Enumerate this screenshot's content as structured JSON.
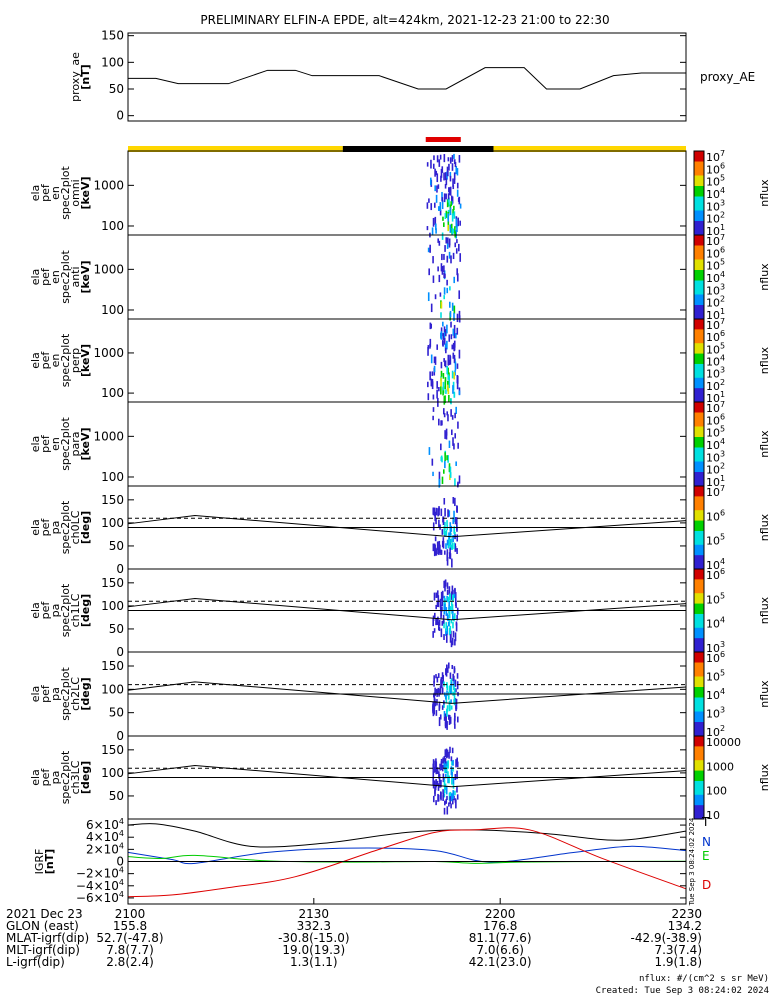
{
  "title": "PRELIMINARY ELFIN-A EPDE, alt=424km, 2021-12-23 21:00 to 22:30",
  "colors": {
    "ae_line": "#000000",
    "day_bar": "#ffd700",
    "night_bar": "#000000",
    "sci_bar": "#e00000",
    "grf_T": "#000000",
    "grf_N": "#0033cc",
    "grf_E": "#00cc00",
    "grf_D": "#dd0000"
  },
  "orbit_bars": {
    "day_night": [
      {
        "start": 0.0,
        "end": 0.385,
        "state": "day"
      },
      {
        "start": 0.385,
        "end": 0.655,
        "state": "night"
      },
      {
        "start": 0.655,
        "end": 1.0,
        "state": "day"
      }
    ],
    "science_zone": {
      "start": 0.53,
      "end": 0.6
    }
  },
  "panels": [
    {
      "id": "proxy_ae",
      "ylabel": [
        "proxy_ae",
        "[nT]"
      ],
      "right_label": "proxy_AE",
      "ticks": [
        "150",
        "100",
        "50",
        "0"
      ]
    },
    {
      "id": "en_omni",
      "ylabel": [
        "ela",
        "pef",
        "en",
        "spec2plot",
        "omni",
        "[keV]"
      ],
      "ticks": [
        "1000",
        "100"
      ],
      "cbar_label": "nflux",
      "cbar_ticks": [
        "10^7",
        "10^6",
        "10^5",
        "10^4",
        "10^3",
        "10^2",
        "10^1"
      ]
    },
    {
      "id": "en_anti",
      "ylabel": [
        "ela",
        "pef",
        "en",
        "spec2plot",
        "anti",
        "[keV]"
      ],
      "ticks": [
        "1000",
        "100"
      ],
      "cbar_label": "nflux",
      "cbar_ticks": [
        "10^7",
        "10^6",
        "10^5",
        "10^4",
        "10^3",
        "10^2",
        "10^1"
      ]
    },
    {
      "id": "en_perp",
      "ylabel": [
        "ela",
        "pef",
        "en",
        "spec2plot",
        "perp",
        "[keV]"
      ],
      "ticks": [
        "1000",
        "100"
      ],
      "cbar_label": "nflux",
      "cbar_ticks": [
        "10^7",
        "10^6",
        "10^5",
        "10^4",
        "10^3",
        "10^2",
        "10^1"
      ]
    },
    {
      "id": "en_para",
      "ylabel": [
        "ela",
        "pef",
        "en",
        "spec2plot",
        "para",
        "[keV]"
      ],
      "ticks": [
        "1000",
        "100"
      ],
      "cbar_label": "nflux",
      "cbar_ticks": [
        "10^7",
        "10^6",
        "10^5",
        "10^4",
        "10^3",
        "10^2",
        "10^1"
      ]
    },
    {
      "id": "pa_ch0",
      "ylabel": [
        "ela",
        "pef",
        "pa",
        "spec2plot",
        "ch0LC",
        "[deg]"
      ],
      "ticks": [
        "150",
        "100",
        "50",
        "0"
      ],
      "cbar_label": "nflux",
      "cbar_ticks": [
        "10^7",
        "10^6",
        "10^5",
        "10^4"
      ]
    },
    {
      "id": "pa_ch1",
      "ylabel": [
        "ela",
        "pef",
        "pa",
        "spec2plot",
        "ch1LC",
        "[deg]"
      ],
      "ticks": [
        "150",
        "100",
        "50",
        "0"
      ],
      "cbar_label": "nflux",
      "cbar_ticks": [
        "10^6",
        "10^5",
        "10^4",
        "10^3"
      ]
    },
    {
      "id": "pa_ch2",
      "ylabel": [
        "ela",
        "pef",
        "pa",
        "spec2plot",
        "ch2LC",
        "[deg]"
      ],
      "ticks": [
        "150",
        "100",
        "50",
        "0"
      ],
      "cbar_label": "nflux",
      "cbar_ticks": [
        "10^6",
        "10^5",
        "10^4",
        "10^3",
        "10^2"
      ]
    },
    {
      "id": "pa_ch3",
      "ylabel": [
        "ela",
        "pef",
        "pa",
        "spec2plot",
        "ch3LC",
        "[deg]"
      ],
      "ticks": [
        "150",
        "100",
        "50"
      ],
      "cbar_label": "nflux",
      "cbar_ticks": [
        "10000",
        "1000",
        "100",
        "10"
      ]
    },
    {
      "id": "igrf",
      "ylabel": [
        "IGRF",
        "[nT]"
      ],
      "ticks": [
        "6×10^4",
        "4×10^4",
        "2×10^4",
        "0",
        "−2×10^4",
        "−4×10^4",
        "−6×10^4"
      ],
      "legend": [
        "T",
        "N",
        "E",
        "D"
      ],
      "side_stamp": "Tue Sep  3 08:24:02 2024"
    }
  ],
  "chart_data": [
    {
      "type": "line",
      "title": "",
      "ylabel": "proxy_ae [nT]",
      "ylim": [
        -10,
        155
      ],
      "series": [
        {
          "name": "proxy_AE",
          "x": [
            0,
            0.05,
            0.09,
            0.18,
            0.25,
            0.3,
            0.33,
            0.45,
            0.52,
            0.57,
            0.64,
            0.71,
            0.75,
            0.81,
            0.87,
            0.92,
            1.0
          ],
          "values": [
            70,
            70,
            60,
            60,
            85,
            85,
            75,
            75,
            50,
            50,
            90,
            90,
            50,
            50,
            75,
            80,
            80
          ]
        }
      ]
    },
    {
      "type": "heatmap",
      "title": "",
      "ylabel": "ela pef en spec2plot omni [keV]",
      "ylim": [
        60,
        7000
      ],
      "yscale": "log",
      "clim": [
        10,
        10000000
      ],
      "clabel": "nflux",
      "x_range": [
        0.535,
        0.595
      ]
    },
    {
      "type": "heatmap",
      "title": "",
      "ylabel": "ela pef en spec2plot anti [keV]",
      "ylim": [
        60,
        7000
      ],
      "yscale": "log",
      "clim": [
        10,
        10000000
      ],
      "clabel": "nflux",
      "x_range": [
        0.535,
        0.595
      ]
    },
    {
      "type": "heatmap",
      "title": "",
      "ylabel": "ela pef en spec2plot perp [keV]",
      "ylim": [
        60,
        7000
      ],
      "yscale": "log",
      "clim": [
        10,
        10000000
      ],
      "clabel": "nflux",
      "x_range": [
        0.535,
        0.595
      ]
    },
    {
      "type": "heatmap",
      "title": "",
      "ylabel": "ela pef en spec2plot para [keV]",
      "ylim": [
        60,
        7000
      ],
      "yscale": "log",
      "clim": [
        10,
        10000000
      ],
      "clabel": "nflux",
      "x_range": [
        0.535,
        0.595
      ]
    },
    {
      "type": "heatmap",
      "title": "",
      "ylabel": "ela pef pa spec2plot ch0LC [deg]",
      "ylim": [
        0,
        180
      ],
      "clim": [
        3000,
        10000000
      ],
      "clabel": "nflux",
      "x_range": [
        0.545,
        0.59
      ],
      "loss_cone_solid": {
        "x": [
          0,
          0.12,
          0.58,
          1.0
        ],
        "y": [
          98,
          116,
          70,
          105
        ]
      },
      "loss_cone_dashed": {
        "x": [
          0,
          1.0
        ],
        "y": [
          110,
          110
        ]
      },
      "reference_line": {
        "x": [
          0,
          1.0
        ],
        "y": [
          90,
          90
        ]
      }
    },
    {
      "type": "heatmap",
      "title": "",
      "ylabel": "ela pef pa spec2plot ch1LC [deg]",
      "ylim": [
        0,
        180
      ],
      "clim": [
        1000,
        3000000
      ],
      "clabel": "nflux",
      "x_range": [
        0.545,
        0.59
      ],
      "loss_cone_solid": {
        "x": [
          0,
          0.12,
          0.58,
          1.0
        ],
        "y": [
          98,
          116,
          70,
          105
        ]
      },
      "loss_cone_dashed": {
        "x": [
          0,
          1.0
        ],
        "y": [
          110,
          110
        ]
      },
      "reference_line": {
        "x": [
          0,
          1.0
        ],
        "y": [
          90,
          90
        ]
      }
    },
    {
      "type": "heatmap",
      "title": "",
      "ylabel": "ela pef pa spec2plot ch2LC [deg]",
      "ylim": [
        0,
        180
      ],
      "clim": [
        100,
        3000000
      ],
      "clabel": "nflux",
      "x_range": [
        0.545,
        0.59
      ],
      "loss_cone_solid": {
        "x": [
          0,
          0.12,
          0.58,
          1.0
        ],
        "y": [
          98,
          116,
          70,
          105
        ]
      },
      "loss_cone_dashed": {
        "x": [
          0,
          1.0
        ],
        "y": [
          110,
          110
        ]
      },
      "reference_line": {
        "x": [
          0,
          1.0
        ],
        "y": [
          90,
          90
        ]
      }
    },
    {
      "type": "heatmap",
      "title": "",
      "ylabel": "ela pef pa spec2plot ch3LC [deg]",
      "ylim": [
        0,
        180
      ],
      "clim": [
        10,
        30000
      ],
      "clabel": "nflux",
      "x_range": [
        0.545,
        0.59
      ],
      "loss_cone_solid": {
        "x": [
          0,
          0.12,
          0.58,
          1.0
        ],
        "y": [
          98,
          116,
          70,
          105
        ]
      },
      "loss_cone_dashed": {
        "x": [
          0,
          1.0
        ],
        "y": [
          110,
          110
        ]
      },
      "reference_line": {
        "x": [
          0,
          1.0
        ],
        "y": [
          90,
          90
        ]
      }
    },
    {
      "type": "line",
      "title": "",
      "ylabel": "IGRF [nT]",
      "ylim": [
        -70000,
        70000
      ],
      "series": [
        {
          "name": "T",
          "x": [
            0,
            0.05,
            0.12,
            0.22,
            0.35,
            0.5,
            0.62,
            0.75,
            0.88,
            1.0
          ],
          "values": [
            60000,
            62000,
            50000,
            25000,
            30000,
            48000,
            52000,
            46000,
            35000,
            50000
          ]
        },
        {
          "name": "N",
          "x": [
            0,
            0.08,
            0.12,
            0.25,
            0.4,
            0.55,
            0.65,
            0.8,
            0.9,
            1.0
          ],
          "values": [
            15000,
            3000,
            -3000,
            15000,
            22000,
            18000,
            -1000,
            15000,
            25000,
            18000
          ]
        },
        {
          "name": "E",
          "x": [
            0,
            0.06,
            0.12,
            0.25,
            0.4,
            0.55,
            0.62,
            0.7,
            0.85,
            1.0
          ],
          "values": [
            8000,
            5000,
            10000,
            1000,
            -1000,
            0,
            -3000,
            -1000,
            0,
            500
          ]
        },
        {
          "name": "D",
          "x": [
            0,
            0.08,
            0.18,
            0.3,
            0.45,
            0.55,
            0.62,
            0.72,
            0.85,
            1.0
          ],
          "values": [
            -58000,
            -55000,
            -43000,
            -25000,
            20000,
            48000,
            52000,
            52000,
            5000,
            -45000
          ]
        }
      ]
    }
  ],
  "x_axis": {
    "ticks": [
      "2100",
      "2130",
      "2200",
      "2230"
    ],
    "tick_positions": [
      0,
      0.333,
      0.667,
      1.0
    ],
    "rows": [
      {
        "label": "2021 Dec 23",
        "values": [
          "2100",
          "2130",
          "2200",
          "2230"
        ]
      },
      {
        "label": "GLON (east)",
        "values": [
          "155.8",
          "332.3",
          "176.8",
          "134.2"
        ]
      },
      {
        "label": "MLAT-igrf(dip)",
        "values": [
          "52.7(-47.8)",
          "-30.8(-15.0)",
          "81.1(77.6)",
          "-42.9(-38.9)"
        ]
      },
      {
        "label": "MLT-igrf(dip)",
        "values": [
          "7.8(7.7)",
          "19.0(19.3)",
          "7.0(6.6)",
          "7.3(7.4)"
        ]
      },
      {
        "label": "L-igrf(dip)",
        "values": [
          "2.8(2.4)",
          "1.3(1.1)",
          "42.1(23.0)",
          "1.9(1.8)"
        ]
      }
    ]
  },
  "footer": {
    "units": "nflux: #/(cm^2 s sr MeV)",
    "created": "Created: Tue Sep  3 08:24:02 2024"
  }
}
